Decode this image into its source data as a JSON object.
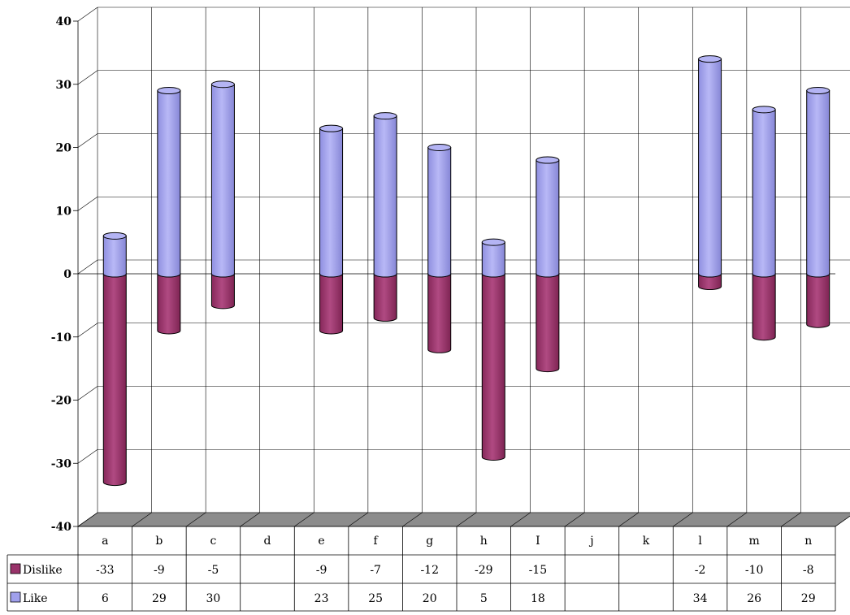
{
  "chart_data": {
    "type": "bar",
    "style": "3d-cylinder",
    "categories": [
      "a",
      "b",
      "c",
      "d",
      "e",
      "f",
      "g",
      "h",
      "I",
      "j",
      "k",
      "l",
      "m",
      "n"
    ],
    "series": [
      {
        "name": "Dislike",
        "color": "#99336a",
        "values": [
          -33,
          -9,
          -5,
          null,
          -9,
          -7,
          -12,
          -29,
          -15,
          null,
          null,
          -2,
          -10,
          -8
        ]
      },
      {
        "name": "Like",
        "color": "#a0a0ec",
        "values": [
          6,
          29,
          30,
          null,
          23,
          25,
          20,
          5,
          18,
          null,
          null,
          34,
          26,
          29
        ]
      }
    ],
    "table_values": {
      "Dislike": [
        "-33",
        "-9",
        "-5",
        "",
        "-9",
        "-7",
        "-12",
        "-29",
        "-15",
        "",
        "",
        "-2",
        "-10",
        "-8"
      ],
      "Like": [
        "6",
        "29",
        "30",
        "",
        "23",
        "25",
        "20",
        "5",
        "18",
        "",
        "",
        "34",
        "26",
        "29"
      ]
    },
    "yticks": [
      "40",
      "30",
      "20",
      "10",
      "0",
      "-10",
      "-20",
      "-30",
      "-40"
    ],
    "ylim": [
      -40,
      40
    ],
    "grid": true,
    "legend": "data-table-left",
    "title": "",
    "xlabel": "",
    "ylabel": ""
  }
}
